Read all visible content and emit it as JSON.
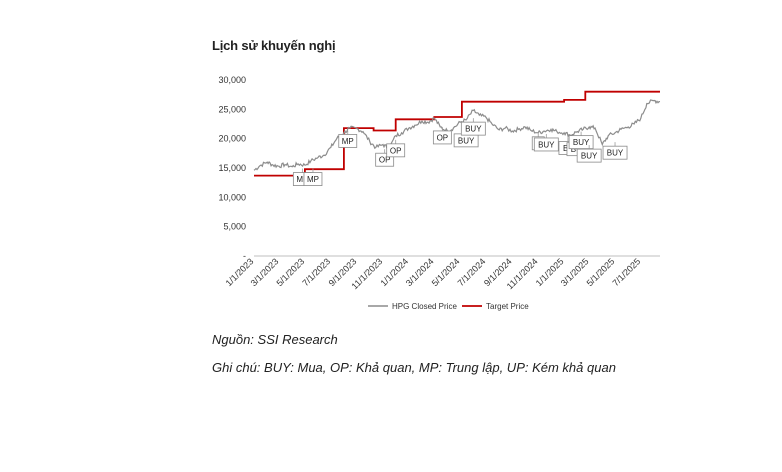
{
  "title": "Lịch sử khuyến nghị",
  "source": "Nguồn: SSI Research",
  "note": "Ghi chú: BUY: Mua, OP: Khả quan, MP: Trung lập, UP: Kém khả quan",
  "colors": {
    "price": "#8c8c8c",
    "target": "#c00000"
  },
  "chart_data": {
    "type": "line",
    "title": "Lịch sử khuyến nghị",
    "xlabel": "",
    "ylabel": "",
    "x_range": [
      "2023-01-01",
      "2025-08-15"
    ],
    "ylim": [
      0,
      30000
    ],
    "y_ticks": [
      {
        "value": 0,
        "label": "-"
      },
      {
        "value": 5000,
        "label": "5,000"
      },
      {
        "value": 10000,
        "label": "10,000"
      },
      {
        "value": 15000,
        "label": "15,000"
      },
      {
        "value": 20000,
        "label": "20,000"
      },
      {
        "value": 25000,
        "label": "25,000"
      },
      {
        "value": 30000,
        "label": "30,000"
      }
    ],
    "x_ticks": [
      {
        "date": "2023-01-01",
        "label": "1/1/2023"
      },
      {
        "date": "2023-03-01",
        "label": "3/1/2023"
      },
      {
        "date": "2023-05-01",
        "label": "5/1/2023"
      },
      {
        "date": "2023-07-01",
        "label": "7/1/2023"
      },
      {
        "date": "2023-09-01",
        "label": "9/1/2023"
      },
      {
        "date": "2023-11-01",
        "label": "11/1/2023"
      },
      {
        "date": "2024-01-01",
        "label": "1/1/2024"
      },
      {
        "date": "2024-03-01",
        "label": "3/1/2024"
      },
      {
        "date": "2024-05-01",
        "label": "5/1/2024"
      },
      {
        "date": "2024-07-01",
        "label": "7/1/2024"
      },
      {
        "date": "2024-09-01",
        "label": "9/1/2024"
      },
      {
        "date": "2024-11-01",
        "label": "11/1/2024"
      },
      {
        "date": "2025-01-01",
        "label": "1/1/2025"
      },
      {
        "date": "2025-03-01",
        "label": "3/1/2025"
      },
      {
        "date": "2025-05-01",
        "label": "5/1/2025"
      },
      {
        "date": "2025-07-01",
        "label": "7/1/2025"
      }
    ],
    "grid": false,
    "legend": "bottom",
    "series": [
      {
        "name": "HPG Closed Price",
        "kind": "line",
        "points": [
          [
            "2023-01-01",
            14600
          ],
          [
            "2023-01-15",
            15400
          ],
          [
            "2023-02-01",
            16000
          ],
          [
            "2023-02-15",
            15500
          ],
          [
            "2023-03-01",
            15300
          ],
          [
            "2023-03-15",
            15600
          ],
          [
            "2023-04-01",
            15200
          ],
          [
            "2023-04-15",
            15700
          ],
          [
            "2023-05-01",
            15500
          ],
          [
            "2023-05-15",
            16200
          ],
          [
            "2023-06-01",
            16800
          ],
          [
            "2023-06-15",
            17200
          ],
          [
            "2023-07-01",
            18500
          ],
          [
            "2023-07-15",
            20000
          ],
          [
            "2023-08-01",
            21000
          ],
          [
            "2023-08-15",
            21800
          ],
          [
            "2023-09-01",
            21700
          ],
          [
            "2023-09-15",
            21200
          ],
          [
            "2023-10-01",
            19500
          ],
          [
            "2023-10-15",
            18500
          ],
          [
            "2023-11-01",
            19000
          ],
          [
            "2023-11-15",
            18300
          ],
          [
            "2023-12-01",
            20500
          ],
          [
            "2023-12-15",
            21000
          ],
          [
            "2024-01-01",
            21800
          ],
          [
            "2024-01-15",
            22300
          ],
          [
            "2024-02-01",
            23000
          ],
          [
            "2024-02-15",
            22800
          ],
          [
            "2024-03-01",
            23500
          ],
          [
            "2024-03-15",
            22000
          ],
          [
            "2024-04-01",
            21300
          ],
          [
            "2024-04-15",
            21800
          ],
          [
            "2024-05-01",
            22800
          ],
          [
            "2024-05-15",
            23200
          ],
          [
            "2024-06-01",
            24800
          ],
          [
            "2024-06-15",
            24000
          ],
          [
            "2024-07-01",
            23600
          ],
          [
            "2024-07-15",
            22500
          ],
          [
            "2024-08-01",
            21500
          ],
          [
            "2024-08-15",
            21800
          ],
          [
            "2024-09-01",
            21300
          ],
          [
            "2024-09-15",
            21600
          ],
          [
            "2024-10-01",
            22000
          ],
          [
            "2024-10-15",
            21400
          ],
          [
            "2024-11-01",
            21000
          ],
          [
            "2024-11-15",
            21300
          ],
          [
            "2024-12-01",
            21600
          ],
          [
            "2024-12-15",
            21200
          ],
          [
            "2025-01-01",
            21000
          ],
          [
            "2025-01-15",
            20600
          ],
          [
            "2025-02-01",
            21200
          ],
          [
            "2025-02-15",
            21600
          ],
          [
            "2025-03-01",
            22000
          ],
          [
            "2025-03-15",
            21800
          ],
          [
            "2025-04-01",
            19000
          ],
          [
            "2025-04-15",
            20500
          ],
          [
            "2025-05-01",
            21000
          ],
          [
            "2025-05-15",
            21600
          ],
          [
            "2025-06-01",
            22000
          ],
          [
            "2025-06-15",
            22500
          ],
          [
            "2025-07-01",
            23500
          ],
          [
            "2025-07-15",
            26000
          ],
          [
            "2025-08-01",
            26500
          ],
          [
            "2025-08-15",
            26300
          ]
        ]
      },
      {
        "name": "Target Price",
        "kind": "step",
        "points": [
          [
            "2023-01-01",
            13700
          ],
          [
            "2023-05-01",
            14800
          ],
          [
            "2023-08-01",
            21800
          ],
          [
            "2023-10-10",
            21400
          ],
          [
            "2023-12-01",
            23300
          ],
          [
            "2024-03-01",
            23700
          ],
          [
            "2024-05-05",
            26300
          ],
          [
            "2024-11-01",
            26300
          ],
          [
            "2025-01-01",
            26600
          ],
          [
            "2025-02-20",
            28000
          ],
          [
            "2025-08-15",
            28000
          ]
        ]
      }
    ],
    "annotations": [
      {
        "label": "MP",
        "date": "2023-04-25",
        "value": 14900
      },
      {
        "label": "MP",
        "date": "2023-05-20",
        "value": 14900
      },
      {
        "label": "MP",
        "date": "2023-08-10",
        "value": 21400
      },
      {
        "label": "OP",
        "date": "2023-11-05",
        "value": 18200
      },
      {
        "label": "OP",
        "date": "2023-12-01",
        "value": 19800
      },
      {
        "label": "OP",
        "date": "2024-03-20",
        "value": 22000
      },
      {
        "label": "BUY",
        "date": "2024-05-15",
        "value": 21500
      },
      {
        "label": "BUY",
        "date": "2024-06-01",
        "value": 23500
      },
      {
        "label": "C",
        "date": "2024-11-01",
        "value": 21000
      },
      {
        "label": "BUY",
        "date": "2024-11-20",
        "value": 20800
      },
      {
        "label": "BL",
        "date": "2025-01-10",
        "value": 20200
      },
      {
        "label": "BUY",
        "date": "2025-02-05",
        "value": 20000
      },
      {
        "label": "BUY",
        "date": "2025-02-10",
        "value": 21200
      },
      {
        "label": "BUY",
        "date": "2025-03-01",
        "value": 18900
      },
      {
        "label": "BUY",
        "date": "2025-05-01",
        "value": 19400
      }
    ]
  }
}
